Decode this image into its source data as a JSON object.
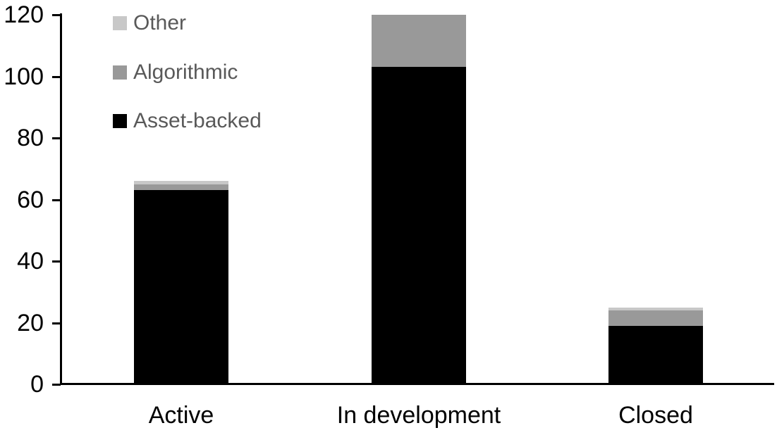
{
  "chart_data": {
    "type": "bar",
    "stacked": true,
    "title": "",
    "xlabel": "",
    "ylabel": "",
    "categories": [
      "Active",
      "In development",
      "Closed"
    ],
    "series": [
      {
        "name": "Asset-backed",
        "color": "#000000",
        "values": [
          63,
          103,
          19
        ]
      },
      {
        "name": "Algorithmic",
        "color": "#999999",
        "values": [
          2,
          17,
          5
        ]
      },
      {
        "name": "Other",
        "color": "#c8c8c8",
        "values": [
          1,
          0,
          1
        ]
      }
    ],
    "totals": [
      66,
      120,
      25
    ],
    "ylim": [
      0,
      120
    ],
    "ytick_interval": 20,
    "yticks": [
      0,
      20,
      40,
      60,
      80,
      100,
      120
    ],
    "grid": false,
    "legend_position": "top-left-inside",
    "legend_order": [
      "Other",
      "Algorithmic",
      "Asset-backed"
    ],
    "axis_color": "#000000",
    "legend_text_color": "#595959"
  }
}
